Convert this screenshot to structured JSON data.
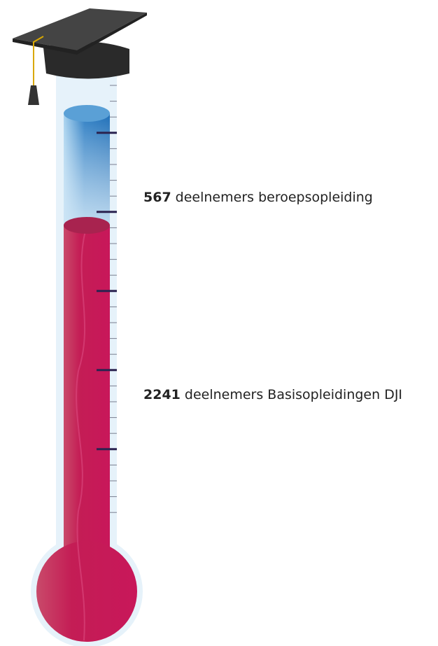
{
  "segments": [
    {
      "value": "567",
      "label": "deelnemers beroepsopleiding"
    },
    {
      "value": "2241",
      "label": "deelnemers Basisopleidingen DJI"
    }
  ]
}
